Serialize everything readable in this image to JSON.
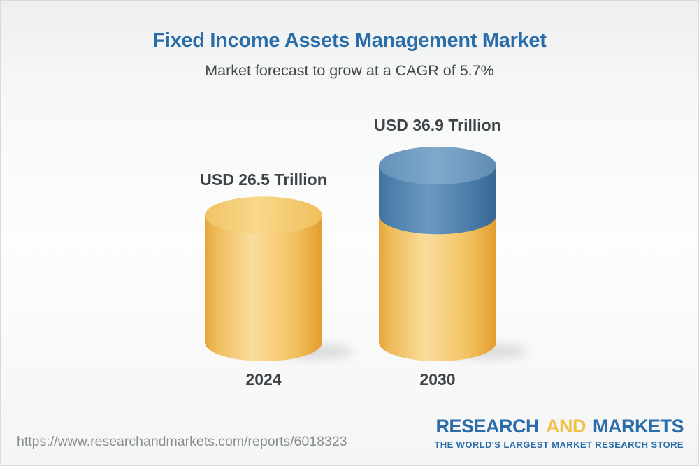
{
  "header": {
    "title": "Fixed Income Assets Management Market",
    "subtitle": "Market forecast to grow at a CAGR of 5.7%"
  },
  "chart_data": {
    "type": "bar",
    "variant": "3d-cylinder",
    "title": "Fixed Income Assets Management Market",
    "subtitle": "Market forecast to grow at a CAGR of 5.7%",
    "cagr_percent": 5.7,
    "unit": "USD Trillion",
    "categories": [
      "2024",
      "2030"
    ],
    "values": [
      26.5,
      36.9
    ],
    "ylim": [
      0,
      36.9
    ],
    "grid": false,
    "legend": "none",
    "bars": [
      {
        "category": "2024",
        "value": 26.5,
        "value_label": "USD 26.5 Trillion",
        "segments": [
          {
            "value": 26.5,
            "color": "gold"
          }
        ]
      },
      {
        "category": "2030",
        "value": 36.9,
        "value_label": "USD 36.9 Trillion",
        "segments": [
          {
            "value": 26.5,
            "color": "gold"
          },
          {
            "value": 10.4,
            "color": "blue"
          }
        ]
      }
    ],
    "colors": {
      "gold": "#F2C563",
      "blue": "#5588B4",
      "label_text": "#3E4347",
      "title_text": "#2B6DA9"
    }
  },
  "footer": {
    "url": "https://www.researchandmarkets.com/reports/6018323",
    "logo": {
      "research": "RESEARCH",
      "and": "AND",
      "markets": "MARKETS",
      "tagline": "THE WORLD'S LARGEST MARKET RESEARCH STORE"
    }
  }
}
